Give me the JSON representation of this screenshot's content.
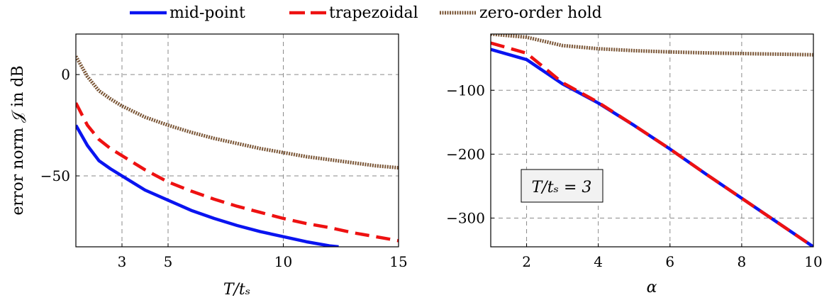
{
  "legend": [
    {
      "label": "mid-point",
      "color": "#0a14f0",
      "style": "solid"
    },
    {
      "label": "trapezoidal",
      "color": "#ee1111",
      "style": "dashed"
    },
    {
      "label": "zero-order hold",
      "color": "#7a5535",
      "style": "dotted"
    }
  ],
  "chart_data": [
    {
      "type": "line",
      "ylabel": "error norm 𝒥 in dB",
      "xlabel": "T/tₛ",
      "xlim": [
        1,
        15
      ],
      "ylim": [
        -85,
        20
      ],
      "xticks": [
        3,
        5,
        10,
        15
      ],
      "xtick_labels": [
        "3",
        "5",
        "10",
        "15"
      ],
      "yticks": [
        0,
        -50
      ],
      "ytick_labels": [
        "0",
        "−50"
      ],
      "grid": true,
      "series": [
        {
          "name": "mid-point",
          "color": "#0a14f0",
          "style": "solid",
          "x": [
            1,
            1.5,
            2,
            2.5,
            3,
            4,
            5,
            6,
            7,
            8,
            9,
            10,
            11,
            12,
            12.4
          ],
          "y": [
            -25,
            -35,
            -42.5,
            -46.5,
            -50,
            -57,
            -62,
            -67,
            -71,
            -74.5,
            -77.5,
            -80,
            -82.5,
            -84.5,
            -85
          ]
        },
        {
          "name": "trapezoidal",
          "color": "#ee1111",
          "style": "dashed",
          "x": [
            1,
            1.5,
            2,
            2.5,
            3,
            4,
            5,
            6,
            7,
            8,
            9,
            10,
            11,
            12,
            13,
            14,
            15
          ],
          "y": [
            -14,
            -25,
            -32,
            -36.5,
            -40,
            -47,
            -53,
            -57.5,
            -61.5,
            -65,
            -68,
            -71,
            -73.5,
            -75.5,
            -78,
            -80,
            -82
          ]
        },
        {
          "name": "zero-order hold",
          "color": "#7a5535",
          "style": "dotted",
          "x": [
            1,
            1.5,
            2,
            2.5,
            3,
            4,
            5,
            6,
            7,
            8,
            9,
            10,
            11,
            12,
            13,
            14,
            15
          ],
          "y": [
            9,
            -1,
            -8,
            -12,
            -15.5,
            -21,
            -25,
            -28.5,
            -31.5,
            -34,
            -36.5,
            -38.5,
            -40.5,
            -42,
            -43.5,
            -45,
            -46
          ]
        }
      ]
    },
    {
      "type": "line",
      "xlabel": "α",
      "ylabel": "",
      "xlim": [
        1,
        10
      ],
      "ylim": [
        -345,
        -12
      ],
      "xticks": [
        2,
        4,
        6,
        8,
        10
      ],
      "xtick_labels": [
        "2",
        "4",
        "6",
        "8",
        "10"
      ],
      "yticks": [
        -100,
        -200,
        -300
      ],
      "ytick_labels": [
        "−100",
        "−200",
        "−300"
      ],
      "grid": true,
      "annotation": "T/tₛ = 3",
      "series": [
        {
          "name": "mid-point",
          "color": "#0a14f0",
          "style": "solid",
          "x": [
            1,
            2,
            3,
            4,
            5,
            6,
            7,
            8,
            9,
            10
          ],
          "y": [
            -36,
            -52,
            -90,
            -120,
            -155,
            -192,
            -231,
            -269,
            -307,
            -345
          ]
        },
        {
          "name": "trapezoidal",
          "color": "#ee1111",
          "style": "dashed",
          "x": [
            1,
            2,
            3,
            4,
            5,
            6,
            7,
            8,
            9,
            10
          ],
          "y": [
            -26,
            -42,
            -88,
            -119,
            -155,
            -192,
            -231,
            -269,
            -307,
            -345
          ]
        },
        {
          "name": "zero-order hold",
          "color": "#7a5535",
          "style": "dotted",
          "x": [
            1,
            2,
            3,
            4,
            5,
            6,
            7,
            8,
            9,
            10
          ],
          "y": [
            -12,
            -17,
            -30,
            -35,
            -38,
            -40,
            -41.5,
            -42.5,
            -43.5,
            -44.5
          ]
        }
      ]
    }
  ]
}
